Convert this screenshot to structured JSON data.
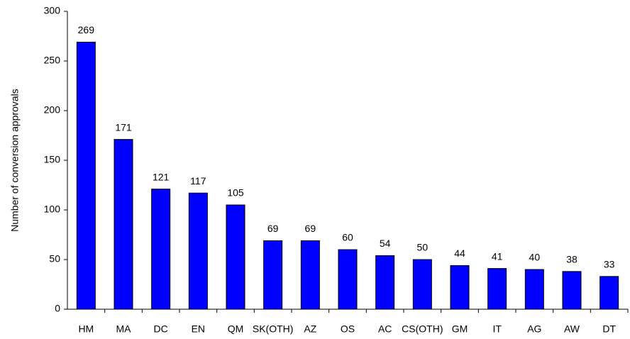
{
  "chart_data": {
    "type": "bar",
    "y_label": "Number of conversion approvals",
    "categories": [
      "HM",
      "MA",
      "DC",
      "EN",
      "QM",
      "SK(OTH)",
      "AZ",
      "OS",
      "AC",
      "CS(OTH)",
      "GM",
      "IT",
      "AG",
      "AW",
      "DT"
    ],
    "values": [
      269,
      171,
      121,
      117,
      105,
      69,
      69,
      60,
      54,
      50,
      44,
      41,
      40,
      38,
      33
    ],
    "color": "#0000ff",
    "ylim": [
      0,
      300
    ],
    "yticks": [
      0,
      50,
      100,
      150,
      200,
      250,
      300
    ],
    "grid": false
  }
}
